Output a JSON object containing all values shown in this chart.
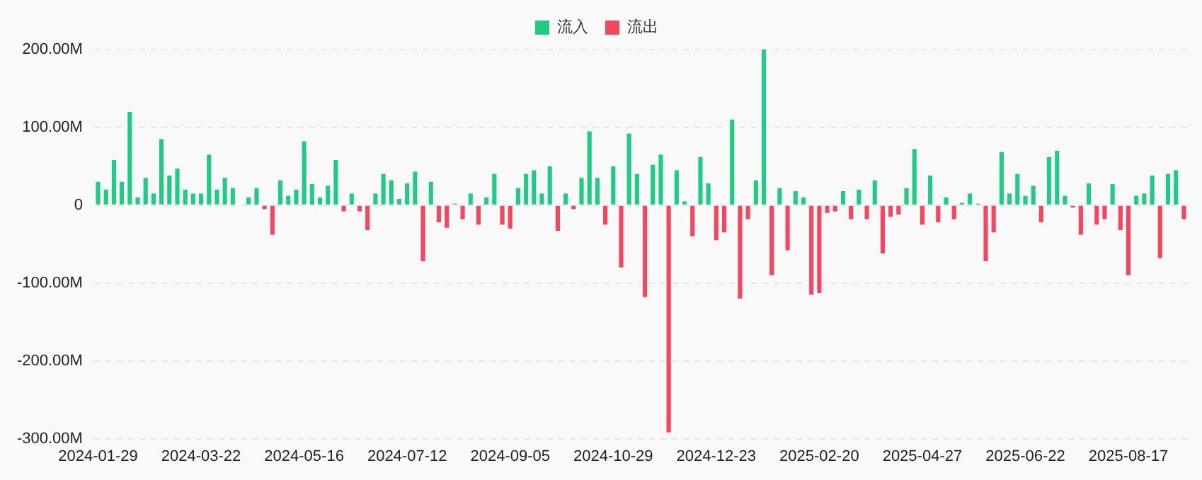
{
  "chart_data": {
    "type": "bar",
    "stacked": true,
    "grid": "y",
    "legend": "top",
    "categories": [
      "2024-01-29",
      null,
      null,
      null,
      null,
      null,
      null,
      null,
      null,
      null,
      null,
      null,
      null,
      "2024-03-22",
      null,
      null,
      null,
      null,
      null,
      null,
      null,
      null,
      null,
      null,
      null,
      null,
      "2024-05-16",
      null,
      null,
      null,
      null,
      null,
      null,
      null,
      null,
      null,
      null,
      null,
      null,
      "2024-07-12",
      null,
      null,
      null,
      null,
      null,
      null,
      null,
      null,
      null,
      null,
      null,
      null,
      "2024-09-05",
      null,
      null,
      null,
      null,
      null,
      null,
      null,
      null,
      null,
      null,
      null,
      null,
      "2024-10-29",
      null,
      null,
      null,
      null,
      null,
      null,
      null,
      null,
      null,
      null,
      null,
      null,
      "2024-12-23",
      null,
      null,
      null,
      null,
      null,
      null,
      null,
      null,
      null,
      null,
      null,
      null,
      "2025-02-20",
      null,
      null,
      null,
      null,
      null,
      null,
      null,
      null,
      null,
      null,
      null,
      null,
      "2025-04-27",
      null,
      null,
      null,
      null,
      null,
      null,
      null,
      null,
      null,
      null,
      null,
      null,
      "2025-06-22",
      null,
      null,
      null,
      null,
      null,
      null,
      null,
      null,
      null,
      null,
      null,
      null,
      "2025-08-17",
      null,
      null,
      null,
      null,
      null,
      null,
      null
    ],
    "ylim": [
      -300,
      200
    ],
    "yticks": [
      {
        "value": -300,
        "label": "-300.00M"
      },
      {
        "value": -200,
        "label": "-200.00M"
      },
      {
        "value": -100,
        "label": "-100.00M"
      },
      0,
      {
        "value": 100,
        "label": "100.00M"
      },
      {
        "value": 200,
        "label": "200.00M"
      }
    ],
    "series": [
      {
        "name": "流入",
        "color": "#1fcc83",
        "values": [
          30,
          20,
          58,
          30,
          120,
          10,
          35,
          15,
          85,
          38,
          47,
          20,
          15,
          15,
          65,
          20,
          35,
          22,
          null,
          10,
          22,
          null,
          null,
          32,
          12,
          20,
          82,
          27,
          10,
          25,
          58,
          null,
          15,
          null,
          null,
          15,
          40,
          32,
          8,
          28,
          43,
          null,
          30,
          null,
          null,
          2,
          null,
          15,
          null,
          10,
          40,
          null,
          null,
          22,
          40,
          45,
          15,
          50,
          null,
          15,
          null,
          35,
          95,
          35,
          null,
          50,
          null,
          92,
          40,
          null,
          52,
          65,
          null,
          45,
          5,
          null,
          62,
          28,
          null,
          null,
          110,
          null,
          null,
          32,
          200,
          null,
          22,
          null,
          18,
          10,
          null,
          null,
          null,
          null,
          18,
          null,
          20,
          null,
          32,
          null,
          null,
          null,
          22,
          72,
          null,
          38,
          null,
          10,
          null,
          3,
          15,
          2,
          null,
          null,
          68,
          15,
          40,
          12,
          25,
          null,
          62,
          70,
          12,
          null,
          null,
          28,
          null,
          null,
          27,
          null,
          null,
          12,
          15,
          38,
          null,
          40,
          45,
          null
        ]
      },
      {
        "name": "流出",
        "color": "#f6465d",
        "values": [
          null,
          null,
          null,
          null,
          null,
          null,
          null,
          null,
          null,
          null,
          null,
          null,
          null,
          null,
          null,
          null,
          null,
          null,
          null,
          null,
          null,
          -5,
          -38,
          null,
          null,
          null,
          null,
          null,
          null,
          null,
          null,
          -8,
          null,
          -8,
          -32,
          null,
          null,
          null,
          null,
          null,
          null,
          -72,
          null,
          -22,
          -29,
          null,
          -18,
          null,
          -25,
          null,
          null,
          -25,
          -30,
          null,
          null,
          null,
          null,
          null,
          -33,
          null,
          -5,
          null,
          null,
          null,
          -25,
          null,
          -80,
          null,
          null,
          -118,
          null,
          null,
          -292,
          null,
          null,
          -40,
          null,
          null,
          -45,
          -35,
          null,
          -120,
          -18,
          null,
          null,
          -90,
          null,
          -58,
          null,
          null,
          -115,
          -113,
          -10,
          -8,
          null,
          -18,
          null,
          -18,
          null,
          -62,
          -15,
          -12,
          null,
          null,
          -25,
          null,
          -22,
          null,
          -18,
          null,
          null,
          null,
          -72,
          -35,
          null,
          null,
          null,
          null,
          null,
          -22,
          null,
          null,
          null,
          -3,
          -38,
          null,
          -25,
          -18,
          null,
          -32,
          -90,
          null,
          null,
          null,
          -68,
          null,
          null,
          -18
        ]
      }
    ]
  }
}
